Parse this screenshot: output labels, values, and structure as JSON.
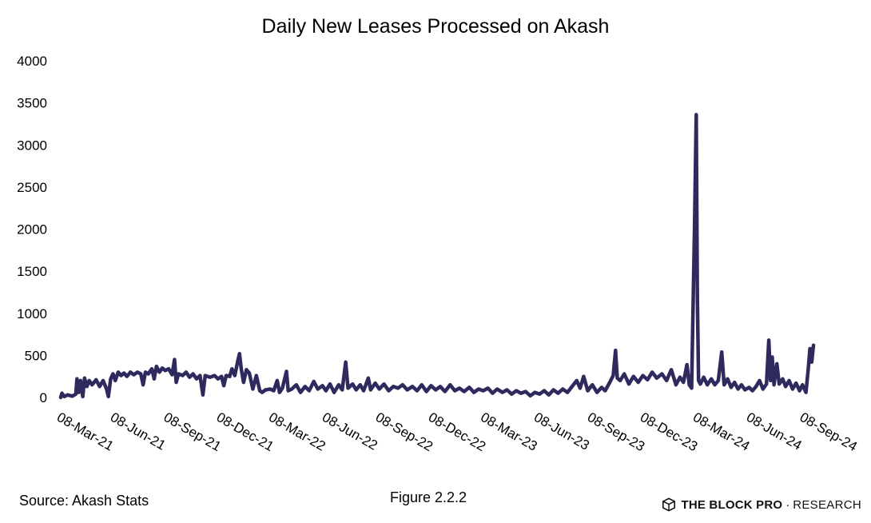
{
  "chart_data": {
    "type": "line",
    "title": "Daily New Leases Processed on Akash",
    "xlabel": "",
    "ylabel": "",
    "ylim": [
      0,
      4000
    ],
    "yticks": [
      0,
      500,
      1000,
      1500,
      2000,
      2500,
      3000,
      3500,
      4000
    ],
    "xtick_labels": [
      "08-Mar-21",
      "08-Jun-21",
      "08-Sep-21",
      "08-Dec-21",
      "08-Mar-22",
      "08-Jun-22",
      "08-Sep-22",
      "08-Dec-22",
      "08-Mar-23",
      "08-Jun-23",
      "08-Sep-23",
      "08-Dec-23",
      "08-Mar-24",
      "08-Jun-24",
      "08-Sep-24"
    ],
    "grid": false,
    "legend": "none",
    "series": [
      {
        "color": "#2e2a5e",
        "points": [
          [
            "2021-03-08",
            0
          ],
          [
            "2021-03-10",
            50
          ],
          [
            "2021-03-14",
            10
          ],
          [
            "2021-03-20",
            30
          ],
          [
            "2021-03-28",
            15
          ],
          [
            "2021-04-03",
            40
          ],
          [
            "2021-04-05",
            220
          ],
          [
            "2021-04-08",
            60
          ],
          [
            "2021-04-11",
            200
          ],
          [
            "2021-04-15",
            10
          ],
          [
            "2021-04-18",
            230
          ],
          [
            "2021-04-22",
            130
          ],
          [
            "2021-04-26",
            200
          ],
          [
            "2021-05-01",
            150
          ],
          [
            "2021-05-08",
            210
          ],
          [
            "2021-05-14",
            130
          ],
          [
            "2021-05-20",
            200
          ],
          [
            "2021-05-26",
            100
          ],
          [
            "2021-05-29",
            10
          ],
          [
            "2021-06-02",
            220
          ],
          [
            "2021-06-06",
            280
          ],
          [
            "2021-06-10",
            200
          ],
          [
            "2021-06-15",
            300
          ],
          [
            "2021-06-20",
            260
          ],
          [
            "2021-06-25",
            290
          ],
          [
            "2021-06-30",
            250
          ],
          [
            "2021-07-06",
            300
          ],
          [
            "2021-07-12",
            270
          ],
          [
            "2021-07-18",
            300
          ],
          [
            "2021-07-24",
            280
          ],
          [
            "2021-07-28",
            150
          ],
          [
            "2021-08-01",
            300
          ],
          [
            "2021-08-06",
            280
          ],
          [
            "2021-08-12",
            340
          ],
          [
            "2021-08-16",
            220
          ],
          [
            "2021-08-20",
            370
          ],
          [
            "2021-08-25",
            300
          ],
          [
            "2021-08-30",
            350
          ],
          [
            "2021-09-04",
            320
          ],
          [
            "2021-09-10",
            340
          ],
          [
            "2021-09-16",
            270
          ],
          [
            "2021-09-20",
            450
          ],
          [
            "2021-09-23",
            180
          ],
          [
            "2021-09-27",
            280
          ],
          [
            "2021-10-04",
            260
          ],
          [
            "2021-10-10",
            300
          ],
          [
            "2021-10-16",
            240
          ],
          [
            "2021-10-22",
            280
          ],
          [
            "2021-10-28",
            220
          ],
          [
            "2021-11-03",
            260
          ],
          [
            "2021-11-08",
            30
          ],
          [
            "2021-11-12",
            260
          ],
          [
            "2021-11-20",
            240
          ],
          [
            "2021-11-28",
            260
          ],
          [
            "2021-12-04",
            220
          ],
          [
            "2021-12-10",
            250
          ],
          [
            "2021-12-14",
            140
          ],
          [
            "2021-12-18",
            260
          ],
          [
            "2021-12-24",
            250
          ],
          [
            "2021-12-28",
            340
          ],
          [
            "2022-01-02",
            260
          ],
          [
            "2022-01-07",
            430
          ],
          [
            "2022-01-10",
            520
          ],
          [
            "2022-01-13",
            340
          ],
          [
            "2022-01-17",
            180
          ],
          [
            "2022-01-22",
            330
          ],
          [
            "2022-01-27",
            290
          ],
          [
            "2022-02-02",
            100
          ],
          [
            "2022-02-08",
            260
          ],
          [
            "2022-02-14",
            80
          ],
          [
            "2022-02-18",
            60
          ],
          [
            "2022-02-24",
            90
          ],
          [
            "2022-03-04",
            100
          ],
          [
            "2022-03-10",
            80
          ],
          [
            "2022-03-16",
            200
          ],
          [
            "2022-03-20",
            60
          ],
          [
            "2022-03-25",
            110
          ],
          [
            "2022-04-01",
            310
          ],
          [
            "2022-04-04",
            80
          ],
          [
            "2022-04-10",
            100
          ],
          [
            "2022-04-18",
            150
          ],
          [
            "2022-04-25",
            60
          ],
          [
            "2022-05-03",
            130
          ],
          [
            "2022-05-10",
            80
          ],
          [
            "2022-05-18",
            190
          ],
          [
            "2022-05-25",
            100
          ],
          [
            "2022-06-02",
            140
          ],
          [
            "2022-06-08",
            80
          ],
          [
            "2022-06-15",
            160
          ],
          [
            "2022-06-22",
            60
          ],
          [
            "2022-06-30",
            150
          ],
          [
            "2022-07-06",
            90
          ],
          [
            "2022-07-12",
            420
          ],
          [
            "2022-07-16",
            110
          ],
          [
            "2022-07-24",
            160
          ],
          [
            "2022-07-30",
            90
          ],
          [
            "2022-08-06",
            150
          ],
          [
            "2022-08-12",
            80
          ],
          [
            "2022-08-20",
            230
          ],
          [
            "2022-08-24",
            90
          ],
          [
            "2022-09-01",
            170
          ],
          [
            "2022-09-08",
            100
          ],
          [
            "2022-09-16",
            160
          ],
          [
            "2022-09-24",
            80
          ],
          [
            "2022-10-02",
            130
          ],
          [
            "2022-10-10",
            110
          ],
          [
            "2022-10-18",
            150
          ],
          [
            "2022-10-26",
            90
          ],
          [
            "2022-11-04",
            130
          ],
          [
            "2022-11-12",
            80
          ],
          [
            "2022-11-20",
            150
          ],
          [
            "2022-11-28",
            70
          ],
          [
            "2022-12-06",
            140
          ],
          [
            "2022-12-14",
            90
          ],
          [
            "2022-12-22",
            130
          ],
          [
            "2022-12-30",
            70
          ],
          [
            "2023-01-08",
            150
          ],
          [
            "2023-01-16",
            80
          ],
          [
            "2023-01-24",
            110
          ],
          [
            "2023-02-01",
            70
          ],
          [
            "2023-02-10",
            120
          ],
          [
            "2023-02-18",
            60
          ],
          [
            "2023-02-26",
            100
          ],
          [
            "2023-03-06",
            80
          ],
          [
            "2023-03-14",
            110
          ],
          [
            "2023-03-22",
            50
          ],
          [
            "2023-03-30",
            100
          ],
          [
            "2023-04-08",
            60
          ],
          [
            "2023-04-16",
            90
          ],
          [
            "2023-04-24",
            40
          ],
          [
            "2023-05-02",
            80
          ],
          [
            "2023-05-10",
            50
          ],
          [
            "2023-05-18",
            70
          ],
          [
            "2023-05-26",
            20
          ],
          [
            "2023-06-03",
            60
          ],
          [
            "2023-06-11",
            40
          ],
          [
            "2023-06-19",
            80
          ],
          [
            "2023-06-27",
            30
          ],
          [
            "2023-07-05",
            90
          ],
          [
            "2023-07-13",
            50
          ],
          [
            "2023-07-21",
            100
          ],
          [
            "2023-07-29",
            60
          ],
          [
            "2023-08-06",
            130
          ],
          [
            "2023-08-14",
            200
          ],
          [
            "2023-08-20",
            110
          ],
          [
            "2023-08-26",
            250
          ],
          [
            "2023-09-02",
            80
          ],
          [
            "2023-09-10",
            150
          ],
          [
            "2023-09-18",
            60
          ],
          [
            "2023-09-26",
            120
          ],
          [
            "2023-10-02",
            80
          ],
          [
            "2023-10-10",
            180
          ],
          [
            "2023-10-16",
            260
          ],
          [
            "2023-10-20",
            560
          ],
          [
            "2023-10-23",
            230
          ],
          [
            "2023-10-28",
            200
          ],
          [
            "2023-11-04",
            280
          ],
          [
            "2023-11-12",
            160
          ],
          [
            "2023-11-20",
            250
          ],
          [
            "2023-11-28",
            180
          ],
          [
            "2023-12-06",
            260
          ],
          [
            "2023-12-14",
            210
          ],
          [
            "2023-12-22",
            300
          ],
          [
            "2023-12-30",
            230
          ],
          [
            "2024-01-08",
            280
          ],
          [
            "2024-01-16",
            200
          ],
          [
            "2024-01-24",
            330
          ],
          [
            "2024-02-01",
            150
          ],
          [
            "2024-02-08",
            240
          ],
          [
            "2024-02-14",
            180
          ],
          [
            "2024-02-20",
            390
          ],
          [
            "2024-02-24",
            150
          ],
          [
            "2024-02-28",
            110
          ],
          [
            "2024-03-04",
            2000
          ],
          [
            "2024-03-07",
            3360
          ],
          [
            "2024-03-09",
            1200
          ],
          [
            "2024-03-11",
            200
          ],
          [
            "2024-03-14",
            160
          ],
          [
            "2024-03-20",
            240
          ],
          [
            "2024-03-26",
            150
          ],
          [
            "2024-04-02",
            220
          ],
          [
            "2024-04-08",
            150
          ],
          [
            "2024-04-14",
            200
          ],
          [
            "2024-04-20",
            540
          ],
          [
            "2024-04-24",
            150
          ],
          [
            "2024-04-30",
            220
          ],
          [
            "2024-05-06",
            120
          ],
          [
            "2024-05-12",
            180
          ],
          [
            "2024-05-18",
            100
          ],
          [
            "2024-05-24",
            150
          ],
          [
            "2024-05-30",
            90
          ],
          [
            "2024-06-06",
            120
          ],
          [
            "2024-06-12",
            80
          ],
          [
            "2024-06-18",
            130
          ],
          [
            "2024-06-24",
            200
          ],
          [
            "2024-06-30",
            100
          ],
          [
            "2024-07-06",
            160
          ],
          [
            "2024-07-10",
            680
          ],
          [
            "2024-07-13",
            200
          ],
          [
            "2024-07-16",
            480
          ],
          [
            "2024-07-19",
            150
          ],
          [
            "2024-07-24",
            400
          ],
          [
            "2024-07-28",
            160
          ],
          [
            "2024-08-03",
            220
          ],
          [
            "2024-08-08",
            130
          ],
          [
            "2024-08-14",
            200
          ],
          [
            "2024-08-20",
            100
          ],
          [
            "2024-08-26",
            170
          ],
          [
            "2024-09-01",
            80
          ],
          [
            "2024-09-06",
            150
          ],
          [
            "2024-09-12",
            60
          ],
          [
            "2024-09-16",
            340
          ],
          [
            "2024-09-19",
            580
          ],
          [
            "2024-09-22",
            420
          ],
          [
            "2024-09-25",
            620
          ]
        ]
      }
    ]
  },
  "footer": {
    "source": "Source: Akash Stats",
    "figure": "Figure 2.2.2",
    "brand_primary": "THE BLOCK PRO",
    "brand_separator": "·",
    "brand_secondary": "RESEARCH"
  },
  "colors": {
    "line": "#2e2a5e",
    "text": "#000000"
  },
  "icons": {
    "brand": "cube-logo-icon"
  }
}
